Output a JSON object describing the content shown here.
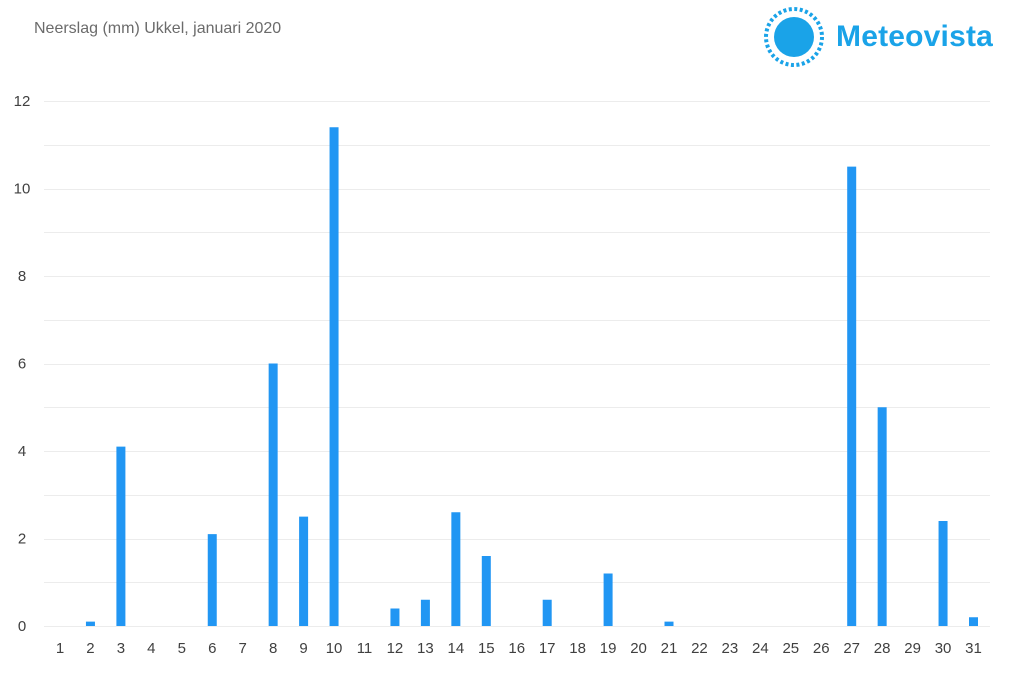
{
  "chart_data": {
    "type": "bar",
    "title": "Neerslag (mm) Ukkel, januari 2020",
    "xlabel": "",
    "ylabel": "",
    "ylim": [
      0,
      12
    ],
    "yticks": [
      0,
      2,
      4,
      6,
      8,
      10,
      12
    ],
    "grid": true,
    "categories": [
      "1",
      "2",
      "3",
      "4",
      "5",
      "6",
      "7",
      "8",
      "9",
      "10",
      "11",
      "12",
      "13",
      "14",
      "15",
      "16",
      "17",
      "18",
      "19",
      "20",
      "21",
      "22",
      "23",
      "24",
      "25",
      "26",
      "27",
      "28",
      "29",
      "30",
      "31"
    ],
    "series": [
      {
        "values": [
          0,
          0.1,
          4.1,
          0,
          0,
          2.1,
          0,
          6.0,
          2.5,
          11.4,
          0,
          0.4,
          0.6,
          2.6,
          1.6,
          0,
          0.6,
          0,
          1.2,
          0,
          0.1,
          0,
          0,
          0,
          0,
          0,
          10.5,
          5.0,
          0,
          2.4,
          0.2
        ],
        "color": "#2196f3"
      }
    ]
  },
  "brand": {
    "name": "Meteovista",
    "logo_icon": "sun-icon",
    "color": "#1aa3e8"
  },
  "colors": {
    "bar": "#2196f3",
    "grid": "#ececec",
    "text": "#404040"
  }
}
